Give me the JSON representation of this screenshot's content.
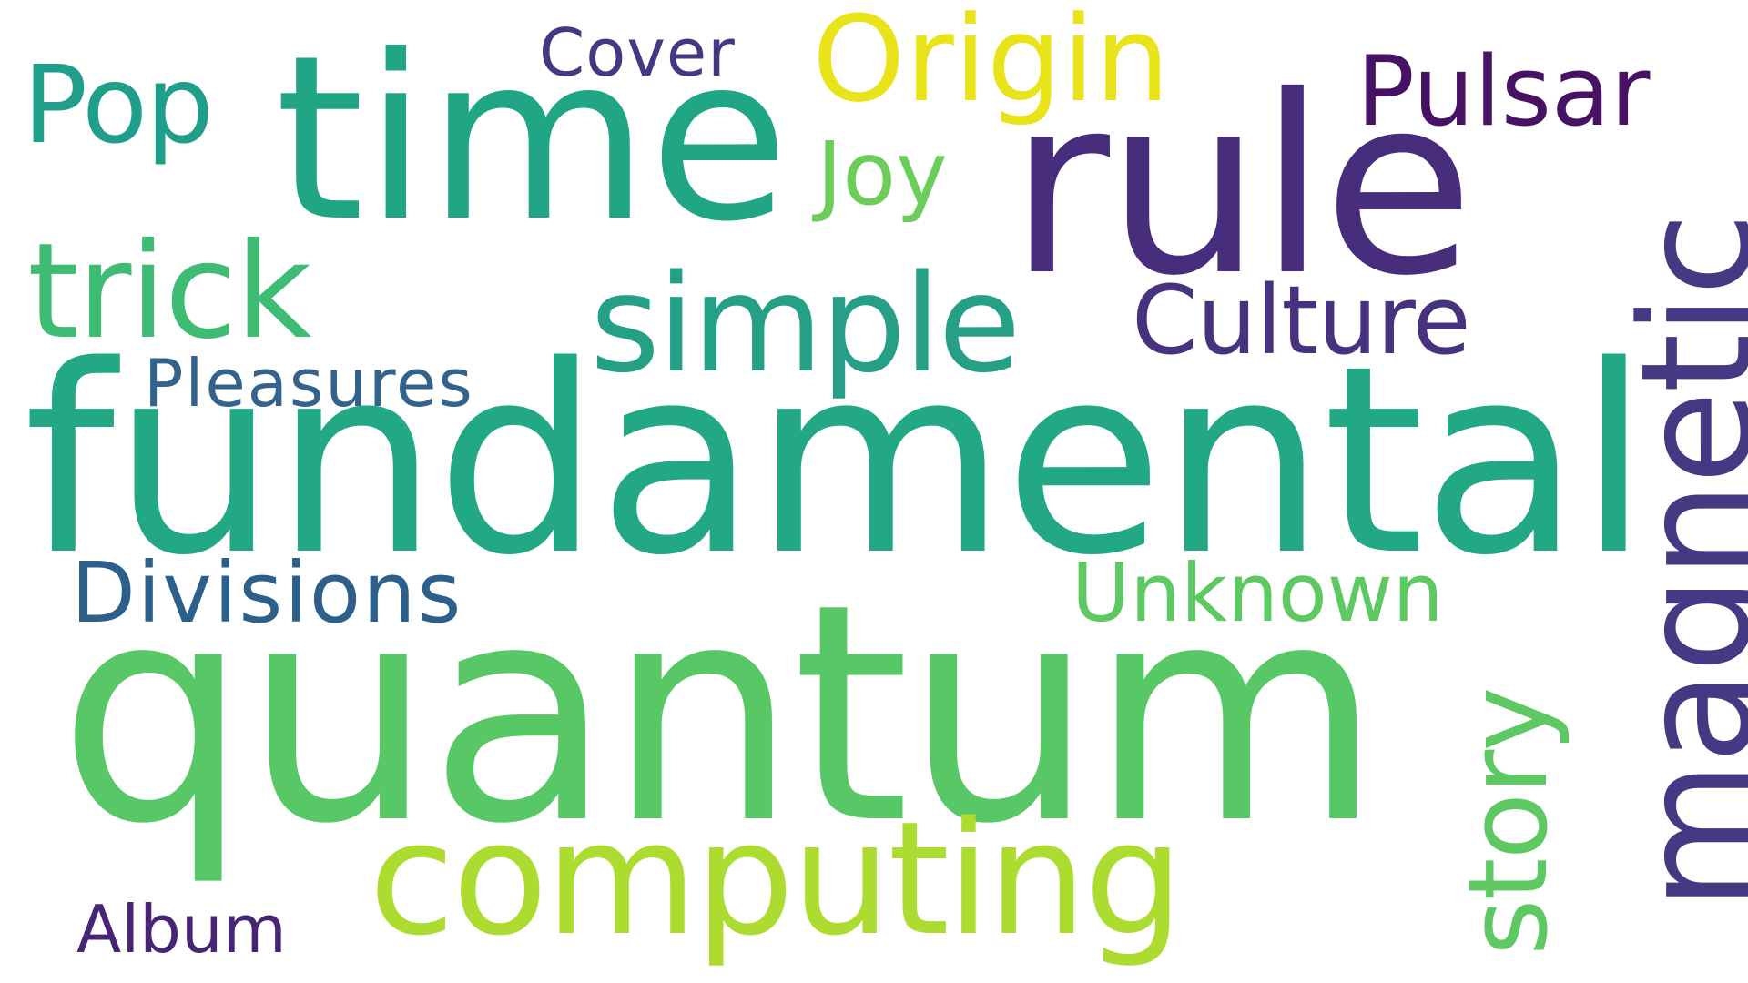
{
  "colors": {
    "background": "#ffffff",
    "viridis": {
      "dark_purple": "#472374",
      "indigo": "#443983",
      "slate_blue": "#33638d",
      "blue_teal": "#2c728e",
      "teal": "#21918c",
      "sea_green": "#22a884",
      "emerald": "#35b779",
      "green": "#58c765",
      "lime_green": "#7ad151",
      "yellow_green": "#bddf26",
      "yellow": "#e8e419"
    }
  },
  "words": {
    "quantum": {
      "text": "quantum",
      "color": "#58c765"
    },
    "fundamental": {
      "text": "fundamental",
      "color": "#22a884"
    },
    "time": {
      "text": "time",
      "color": "#21a685"
    },
    "rule": {
      "text": "rule",
      "color": "#472d7b"
    },
    "computing": {
      "text": "computing",
      "color": "#addc30"
    },
    "simple": {
      "text": "simple",
      "color": "#25a087"
    },
    "trick": {
      "text": "trick",
      "color": "#3ebc73"
    },
    "magnetic": {
      "text": "magnetic",
      "color": "#443983"
    },
    "story": {
      "text": "story",
      "color": "#5ec962"
    },
    "origin": {
      "text": "Origin",
      "color": "#e8e419"
    },
    "pop": {
      "text": "Pop",
      "color": "#1f9e89"
    },
    "pulsar": {
      "text": "Pulsar",
      "color": "#471164"
    },
    "culture": {
      "text": "Culture",
      "color": "#46327e"
    },
    "joy": {
      "text": "Joy",
      "color": "#6ccd5a"
    },
    "unknown": {
      "text": "Unknown",
      "color": "#5ec962"
    },
    "divisions": {
      "text": "Divisions",
      "color": "#2c5f8a"
    },
    "pleasures": {
      "text": "Pleasures",
      "color": "#33638d"
    },
    "cover": {
      "text": "Cover",
      "color": "#453882"
    },
    "album": {
      "text": "Album",
      "color": "#482475"
    }
  }
}
